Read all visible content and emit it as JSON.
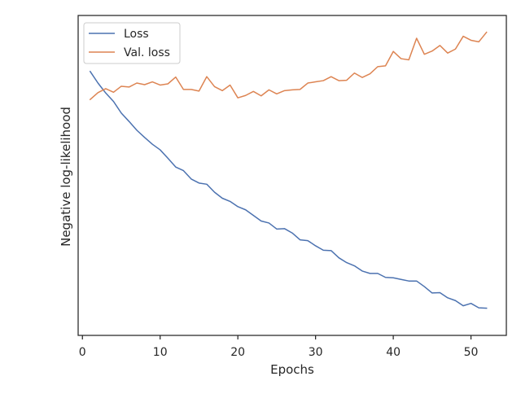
{
  "chart_data": {
    "type": "line",
    "xlabel": "Epochs",
    "ylabel": "Negative log-likelihood",
    "xlim": [
      -0.55,
      54.55
    ],
    "ylim": [
      0.2,
      1.0
    ],
    "xticks": [
      0,
      10,
      20,
      30,
      40,
      50
    ],
    "yticks_shown": false,
    "grid": false,
    "legend": "upper-left",
    "series": [
      {
        "name": "Loss",
        "color": "#4c72b0",
        "x": [
          1,
          2,
          3,
          4,
          5,
          6,
          7,
          8,
          9,
          10,
          11,
          12,
          13,
          14,
          15,
          16,
          17,
          18,
          19,
          20,
          21,
          22,
          23,
          24,
          25,
          26,
          27,
          28,
          29,
          30,
          31,
          32,
          33,
          34,
          35,
          36,
          37,
          38,
          39,
          40,
          41,
          42,
          43,
          44,
          45,
          46,
          47,
          48,
          49,
          50,
          51,
          52
        ],
        "y": [
          0.86,
          0.831,
          0.806,
          0.785,
          0.756,
          0.735,
          0.713,
          0.695,
          0.678,
          0.664,
          0.643,
          0.621,
          0.612,
          0.591,
          0.581,
          0.578,
          0.558,
          0.543,
          0.535,
          0.522,
          0.514,
          0.5,
          0.486,
          0.481,
          0.466,
          0.467,
          0.456,
          0.439,
          0.437,
          0.424,
          0.413,
          0.412,
          0.394,
          0.382,
          0.374,
          0.361,
          0.355,
          0.355,
          0.345,
          0.344,
          0.34,
          0.336,
          0.336,
          0.322,
          0.306,
          0.307,
          0.294,
          0.287,
          0.274,
          0.28,
          0.269,
          0.268
        ]
      },
      {
        "name": "Val. loss",
        "color": "#dd8452",
        "x": [
          1,
          2,
          3,
          4,
          5,
          6,
          7,
          8,
          9,
          10,
          11,
          12,
          13,
          14,
          15,
          16,
          17,
          18,
          19,
          20,
          21,
          22,
          23,
          24,
          25,
          26,
          27,
          28,
          29,
          30,
          31,
          32,
          33,
          34,
          35,
          36,
          37,
          38,
          39,
          40,
          41,
          42,
          43,
          44,
          45,
          46,
          47,
          48,
          49,
          50,
          51,
          52
        ],
        "y": [
          0.79,
          0.807,
          0.817,
          0.808,
          0.823,
          0.821,
          0.831,
          0.827,
          0.834,
          0.826,
          0.829,
          0.846,
          0.815,
          0.815,
          0.811,
          0.847,
          0.822,
          0.812,
          0.826,
          0.794,
          0.8,
          0.81,
          0.799,
          0.814,
          0.804,
          0.812,
          0.814,
          0.815,
          0.831,
          0.834,
          0.837,
          0.847,
          0.837,
          0.838,
          0.856,
          0.845,
          0.854,
          0.872,
          0.874,
          0.91,
          0.892,
          0.889,
          0.943,
          0.903,
          0.911,
          0.925,
          0.906,
          0.916,
          0.948,
          0.938,
          0.934,
          0.958
        ]
      }
    ]
  }
}
